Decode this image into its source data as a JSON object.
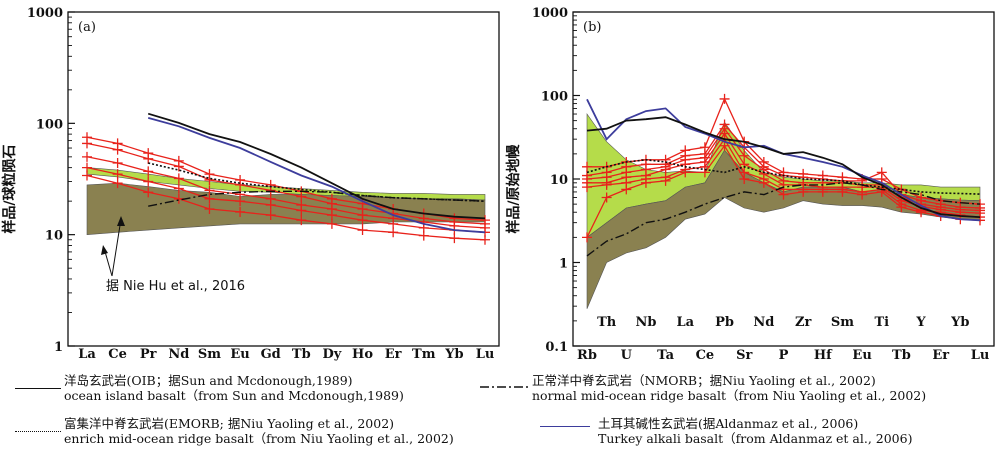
{
  "chart_data": [
    {
      "type": "line",
      "panel_label": "(a)",
      "ylabel": "样品/球粒陨石",
      "yscale": "log",
      "ylim": [
        1,
        1000
      ],
      "yticks": [
        "1",
        "10",
        "100",
        "1000"
      ],
      "categories": [
        "La",
        "Ce",
        "Pr",
        "Nd",
        "Sm",
        "Eu",
        "Gd",
        "Tb",
        "Dy",
        "Ho",
        "Er",
        "Tm",
        "Yb",
        "Lu"
      ],
      "annotation": "据 Nie Hu et al., 2016",
      "colors": {
        "sample": "#e8221b",
        "field_upper": "#b5dc4a",
        "field_lower": "#8a8150",
        "oib": "#111111",
        "turkey": "#3d3d9c",
        "nmorb": "#111111",
        "emorb": "#111111"
      },
      "field_upper": [
        [
          40,
          35
        ],
        [
          38,
          33
        ],
        [
          35,
          30
        ],
        [
          32,
          28
        ],
        [
          30,
          26
        ],
        [
          28,
          24.5
        ],
        [
          27,
          24
        ],
        [
          26,
          23
        ],
        [
          25,
          22.5
        ],
        [
          24,
          22
        ],
        [
          23.5,
          21.5
        ],
        [
          23.5,
          21
        ],
        [
          23,
          21
        ],
        [
          23,
          20.5
        ]
      ],
      "field_lower": [
        [
          28,
          10
        ],
        [
          29,
          10.5
        ],
        [
          27,
          11
        ],
        [
          25,
          11.5
        ],
        [
          24,
          12
        ],
        [
          22,
          12.5
        ],
        [
          23,
          12.5
        ],
        [
          23,
          12.5
        ],
        [
          22.5,
          12.5
        ],
        [
          22,
          12.5
        ],
        [
          21.5,
          13
        ],
        [
          21,
          13
        ],
        [
          21,
          13
        ],
        [
          20.5,
          13
        ]
      ],
      "series": [
        {
          "role": "sample",
          "values": [
            75,
            66,
            54,
            46,
            35,
            31,
            28,
            24.5,
            21,
            19,
            17,
            15.5,
            14,
            13.5
          ]
        },
        {
          "role": "sample",
          "values": [
            66,
            58,
            48,
            41,
            31,
            28,
            25,
            22,
            19,
            17,
            15.5,
            14,
            13,
            12.5
          ]
        },
        {
          "role": "sample",
          "values": [
            50,
            44,
            37,
            32,
            25,
            23,
            21,
            18.5,
            17,
            15,
            14,
            13,
            12,
            11.5
          ]
        },
        {
          "role": "sample",
          "values": [
            40,
            35,
            30,
            26,
            21,
            20,
            18.5,
            16.5,
            15,
            13.5,
            12.5,
            11.5,
            11,
            10.5
          ]
        },
        {
          "role": "sample",
          "values": [
            34,
            29,
            24,
            21,
            17,
            16,
            15,
            13.5,
            12.5,
            11,
            10.5,
            9.8,
            9.3,
            9
          ]
        },
        {
          "role": "oib",
          "values": [
            null,
            null,
            122,
            101,
            80,
            68,
            53,
            40,
            29,
            21,
            17,
            15.5,
            14.5,
            14
          ]
        },
        {
          "role": "turkey",
          "values": [
            null,
            null,
            112,
            94,
            74,
            60,
            45,
            34,
            27,
            20,
            15,
            12.5,
            11,
            10.5
          ]
        },
        {
          "role": "emorb",
          "values": [
            null,
            null,
            44,
            38,
            32,
            29,
            27,
            25.5,
            24,
            22.5,
            21.5,
            21,
            20.5,
            20
          ]
        },
        {
          "role": "nmorb",
          "values": [
            null,
            null,
            18,
            20.5,
            23,
            24,
            24.5,
            24.5,
            24,
            22.5,
            21.5,
            21,
            20.5,
            20
          ]
        }
      ]
    },
    {
      "type": "line",
      "panel_label": "(b)",
      "ylabel": "样品/原始地幔",
      "yscale": "log",
      "ylim": [
        0.1,
        1000
      ],
      "yticks": [
        "0.1",
        "1",
        "10",
        "100",
        "1000"
      ],
      "categories_bottom": [
        "Rb",
        "U",
        "Ta",
        "Ce",
        "Sr",
        "P",
        "Hf",
        "Eu",
        "Tb",
        "Er",
        "Lu"
      ],
      "categories_top": [
        "Th",
        "Nb",
        "La",
        "Pb",
        "Nd",
        "Zr",
        "Sm",
        "Ti",
        "Y",
        "Yb"
      ],
      "categories": [
        "Rb",
        "Th",
        "U",
        "Nb",
        "Ta",
        "La",
        "Ce",
        "Pb",
        "Sr",
        "Nd",
        "P",
        "Zr",
        "Hf",
        "Sm",
        "Eu",
        "Ti",
        "Tb",
        "Y",
        "Er",
        "Yb",
        "Lu"
      ],
      "colors": {
        "sample": "#e8221b",
        "field_upper": "#b5dc4a",
        "field_lower": "#8a8150",
        "oib": "#111111",
        "turkey": "#3d3d9c",
        "nmorb": "#111111",
        "emorb": "#111111"
      },
      "field_upper": [
        [
          60,
          2
        ],
        [
          28,
          3
        ],
        [
          17,
          4.5
        ],
        [
          13,
          5
        ],
        [
          12,
          5.5
        ],
        [
          12.5,
          8
        ],
        [
          12,
          9
        ],
        [
          48,
          22
        ],
        [
          22,
          12
        ],
        [
          12,
          9
        ],
        [
          10.5,
          7
        ],
        [
          10,
          8
        ],
        [
          9.5,
          8
        ],
        [
          9.5,
          8
        ],
        [
          9,
          7
        ],
        [
          9,
          7.5
        ],
        [
          8.5,
          6.5
        ],
        [
          8.5,
          6
        ],
        [
          8,
          5.8
        ],
        [
          8,
          5.6
        ],
        [
          8,
          5.5
        ]
      ],
      "field_lower": [
        [
          2,
          0.28
        ],
        [
          3,
          1
        ],
        [
          4.5,
          1.3
        ],
        [
          5,
          1.5
        ],
        [
          5.5,
          2
        ],
        [
          8,
          3.3
        ],
        [
          9,
          3.8
        ],
        [
          22,
          6
        ],
        [
          12,
          4.5
        ],
        [
          9,
          4
        ],
        [
          7,
          4.5
        ],
        [
          8,
          5.5
        ],
        [
          8,
          5
        ],
        [
          8,
          4.8
        ],
        [
          7,
          4.8
        ],
        [
          7.5,
          4.6
        ],
        [
          6.5,
          4
        ],
        [
          6,
          3.8
        ],
        [
          5.8,
          3.5
        ],
        [
          5.6,
          3.3
        ],
        [
          5.5,
          3.2
        ]
      ],
      "series": [
        {
          "role": "sample",
          "values": [
            14,
            14,
            16,
            17,
            17,
            22,
            24,
            91,
            28,
            16,
            12,
            11.5,
            11,
            10.5,
            10,
            10,
            7.5,
            6,
            5.5,
            5.2,
            5
          ]
        },
        {
          "role": "sample",
          "values": [
            11,
            12,
            14,
            15,
            15,
            19,
            20,
            45,
            24,
            14,
            11,
            10.5,
            10,
            9.5,
            9.5,
            12,
            6.5,
            5.5,
            5,
            4.6,
            4.5
          ]
        },
        {
          "role": "sample",
          "values": [
            10,
            10.5,
            12,
            13,
            14,
            17,
            18,
            40,
            19,
            13,
            9.5,
            9,
            9,
            9,
            8.5,
            8.5,
            6,
            5,
            4.6,
            4.3,
            4.2
          ]
        },
        {
          "role": "sample",
          "values": [
            9,
            9,
            10.5,
            11,
            13,
            15,
            16,
            35,
            15,
            11.5,
            8.5,
            8.5,
            8,
            8,
            8,
            8,
            5.5,
            4.7,
            4.3,
            4,
            3.9
          ]
        },
        {
          "role": "sample",
          "values": [
            8,
            8.5,
            9,
            10,
            10.5,
            13,
            14,
            30,
            12,
            10,
            7.5,
            7.5,
            7.5,
            7.5,
            7,
            7.5,
            5,
            4.2,
            4,
            3.7,
            3.5
          ]
        },
        {
          "role": "sample",
          "values": [
            2,
            6,
            7.5,
            9,
            9.5,
            12,
            12,
            25,
            10,
            9,
            6.5,
            7,
            7,
            7,
            6.5,
            7,
            4.6,
            4,
            3.6,
            3.3,
            3.2
          ]
        },
        {
          "role": "oib",
          "values": [
            38,
            40,
            50,
            52,
            55,
            45,
            36,
            30,
            28,
            24,
            20,
            21,
            18,
            15,
            10.5,
            8.5,
            6,
            4.5,
            3.8,
            3.6,
            3.5
          ]
        },
        {
          "role": "turkey",
          "values": [
            90,
            30,
            52,
            65,
            70,
            42,
            35,
            28,
            24,
            25,
            20,
            18,
            16,
            14,
            11,
            9,
            6.5,
            4.8,
            3.6,
            3.3,
            3.2
          ]
        },
        {
          "role": "emorb",
          "values": [
            12,
            14,
            16,
            17,
            16,
            14,
            13,
            12,
            14,
            12,
            11,
            10,
            9.8,
            9.5,
            8.5,
            8,
            7.5,
            7,
            6.8,
            6.7,
            6.6
          ]
        },
        {
          "role": "nmorb",
          "values": [
            1.2,
            1.8,
            2.2,
            3,
            3.3,
            4,
            5,
            6,
            7,
            6.5,
            8,
            8.5,
            8.5,
            9,
            8.5,
            7.5,
            7,
            6.5,
            5.5,
            5.2,
            5
          ]
        }
      ]
    }
  ],
  "legend": {
    "oib_cn": "洋岛玄武岩(OIB；据Sun and Mcdonough,1989)",
    "oib_en": "ocean island basalt（from Sun and Mcdonough,1989)",
    "emorb_cn": "富集洋中脊玄武岩(EMORB; 据Niu Yaoling et al., 2002)",
    "emorb_en": "enrich mid-ocean ridge basalt（from Niu Yaoling et al., 2002)",
    "nmorb_cn": "正常洋中脊玄武岩（NMORB；据Niu Yaoling et al., 2002)",
    "nmorb_en": "normal mid-ocean ridge basalt（from Niu Yaoling et al., 2002)",
    "turkey_cn": "土耳其碱性玄武岩(据Aldanmaz et al., 2006)",
    "turkey_en": "Turkey alkali basalt（from Aldanmaz et al., 2006)"
  }
}
